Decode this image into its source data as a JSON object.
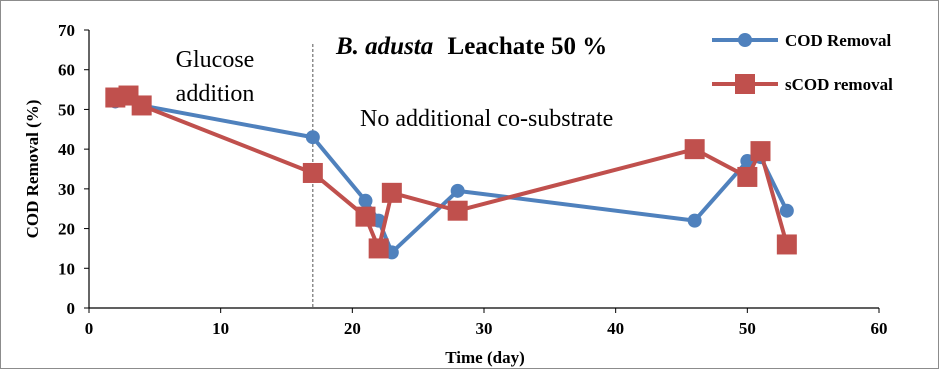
{
  "chart_data": {
    "type": "line",
    "title": {
      "italic": "B. adusta",
      "rest": "Leachate 50 %"
    },
    "xlabel": "Time (day)",
    "ylabel": "COD Removal (%)",
    "xlim": [
      0,
      60
    ],
    "ylim": [
      0,
      70
    ],
    "xticks": [
      0,
      10,
      20,
      30,
      40,
      50,
      60
    ],
    "yticks": [
      0,
      10,
      20,
      30,
      40,
      50,
      60,
      70
    ],
    "grid": false,
    "legend_position": "top-right",
    "series": [
      {
        "name": "COD Removal",
        "color": "#4f81bd",
        "marker": "circle",
        "x": [
          2,
          3,
          4,
          17,
          21,
          22,
          23,
          28,
          46,
          50,
          51,
          53
        ],
        "y": [
          52,
          53,
          51,
          43,
          27,
          22,
          14,
          29.5,
          22,
          37,
          38,
          24.5
        ]
      },
      {
        "name": "sCOD removal",
        "color": "#c0504d",
        "marker": "square",
        "x": [
          2,
          3,
          4,
          17,
          21,
          22,
          23,
          28,
          46,
          50,
          51,
          53
        ],
        "y": [
          53,
          53.5,
          51,
          34,
          23,
          15,
          29,
          24.5,
          40,
          33,
          39.5,
          16
        ]
      }
    ],
    "annotations": [
      {
        "id": "glucose",
        "lines": [
          "Glucose",
          "addition"
        ]
      },
      {
        "id": "no-cosubstrate",
        "lines": [
          "No additional co-substrate"
        ]
      }
    ],
    "vline": {
      "x": 17
    }
  }
}
